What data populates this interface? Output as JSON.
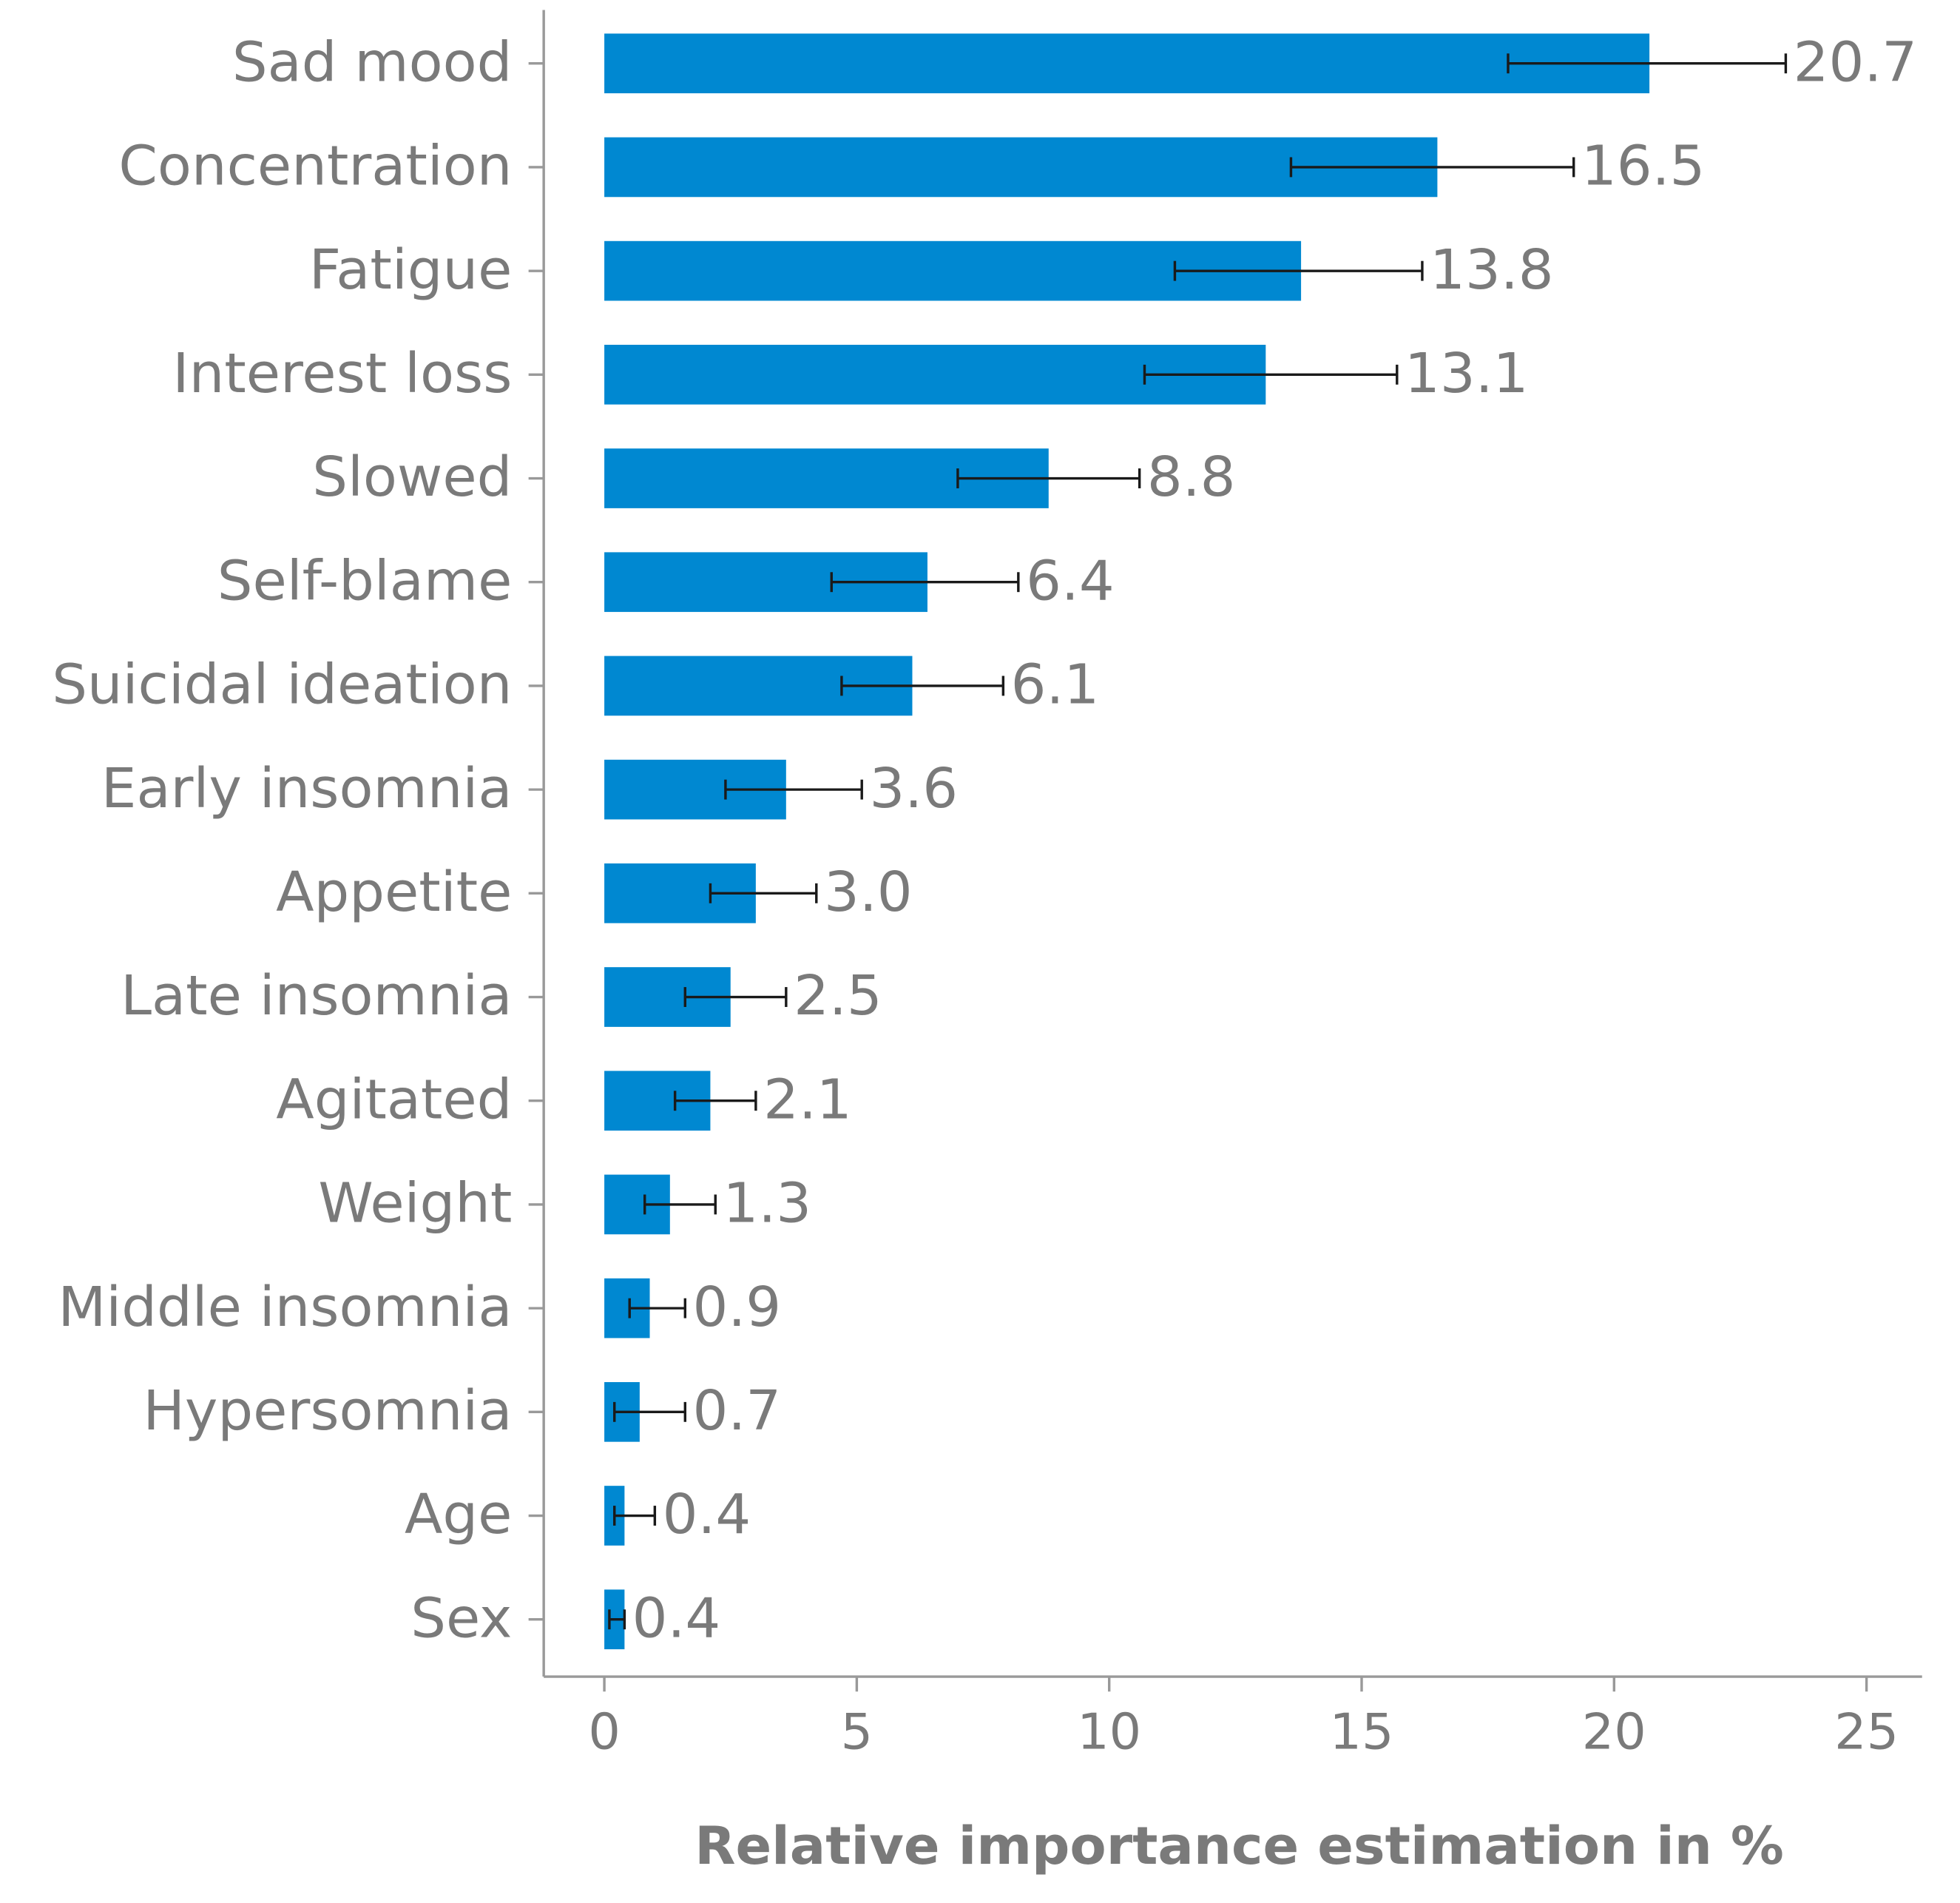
{
  "chart_data": {
    "type": "bar",
    "orientation": "horizontal",
    "x_label": "Relative importance estimation in %",
    "categories": [
      "Sad mood",
      "Concentration",
      "Fatigue",
      "Interest loss",
      "Slowed",
      "Self-blame",
      "Suicidal ideation",
      "Early insomnia",
      "Appetite",
      "Late insomnia",
      "Agitated",
      "Weight",
      "Middle insomnia",
      "Hypersomnia",
      "Age",
      "Sex"
    ],
    "values": [
      20.7,
      16.5,
      13.8,
      13.1,
      8.8,
      6.4,
      6.1,
      3.6,
      3.0,
      2.5,
      2.1,
      1.3,
      0.9,
      0.7,
      0.4,
      0.4
    ],
    "value_labels": [
      "20.7",
      "16.5",
      "13.8",
      "13.1",
      "8.8",
      "6.4",
      "6.1",
      "3.6",
      "3.0",
      "2.5",
      "2.1",
      "1.3",
      "0.9",
      "0.7",
      "0.4",
      "0.4"
    ],
    "ci_low": [
      17.9,
      13.6,
      11.3,
      10.7,
      7.0,
      4.5,
      4.7,
      2.4,
      2.1,
      1.6,
      1.4,
      0.8,
      0.5,
      0.2,
      0.2,
      0.1
    ],
    "ci_high": [
      23.4,
      19.2,
      16.2,
      15.7,
      10.6,
      8.2,
      7.9,
      5.1,
      4.2,
      3.6,
      3.0,
      2.2,
      1.6,
      1.6,
      1.0,
      0.4
    ],
    "color": "#0088d1",
    "xlim": [
      -1.2,
      26.1
    ],
    "xticks": [
      0,
      5,
      10,
      15,
      20,
      25
    ]
  }
}
